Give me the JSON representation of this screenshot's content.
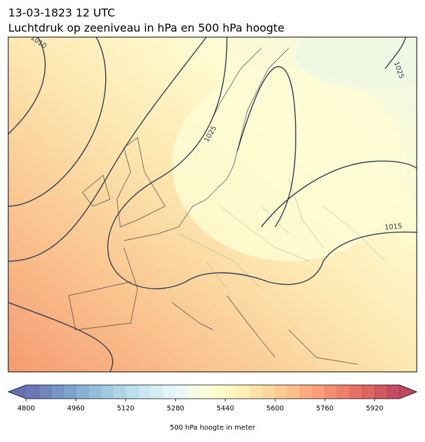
{
  "header": {
    "title": "13-03-1823 12 UTC",
    "subtitle": "Luchtdruk op zeeniveau in hPa en 500 hPa hoogte"
  },
  "map": {
    "contour_labels": [
      "1010",
      "1025",
      "1025",
      "1015"
    ]
  },
  "colorbar": {
    "label": "500 hPa hoogte in meter",
    "lim": [
      4800,
      6000
    ],
    "step": 40,
    "ticks": [
      4800,
      4960,
      5120,
      5280,
      5440,
      5600,
      5760,
      5920
    ],
    "colors": [
      "#313695",
      "#4575b4",
      "#74add1",
      "#abd9e9",
      "#e0f3f8",
      "#ffffbf",
      "#fee090",
      "#fdae61",
      "#f46d43",
      "#d73027",
      "#a50026"
    ]
  }
}
